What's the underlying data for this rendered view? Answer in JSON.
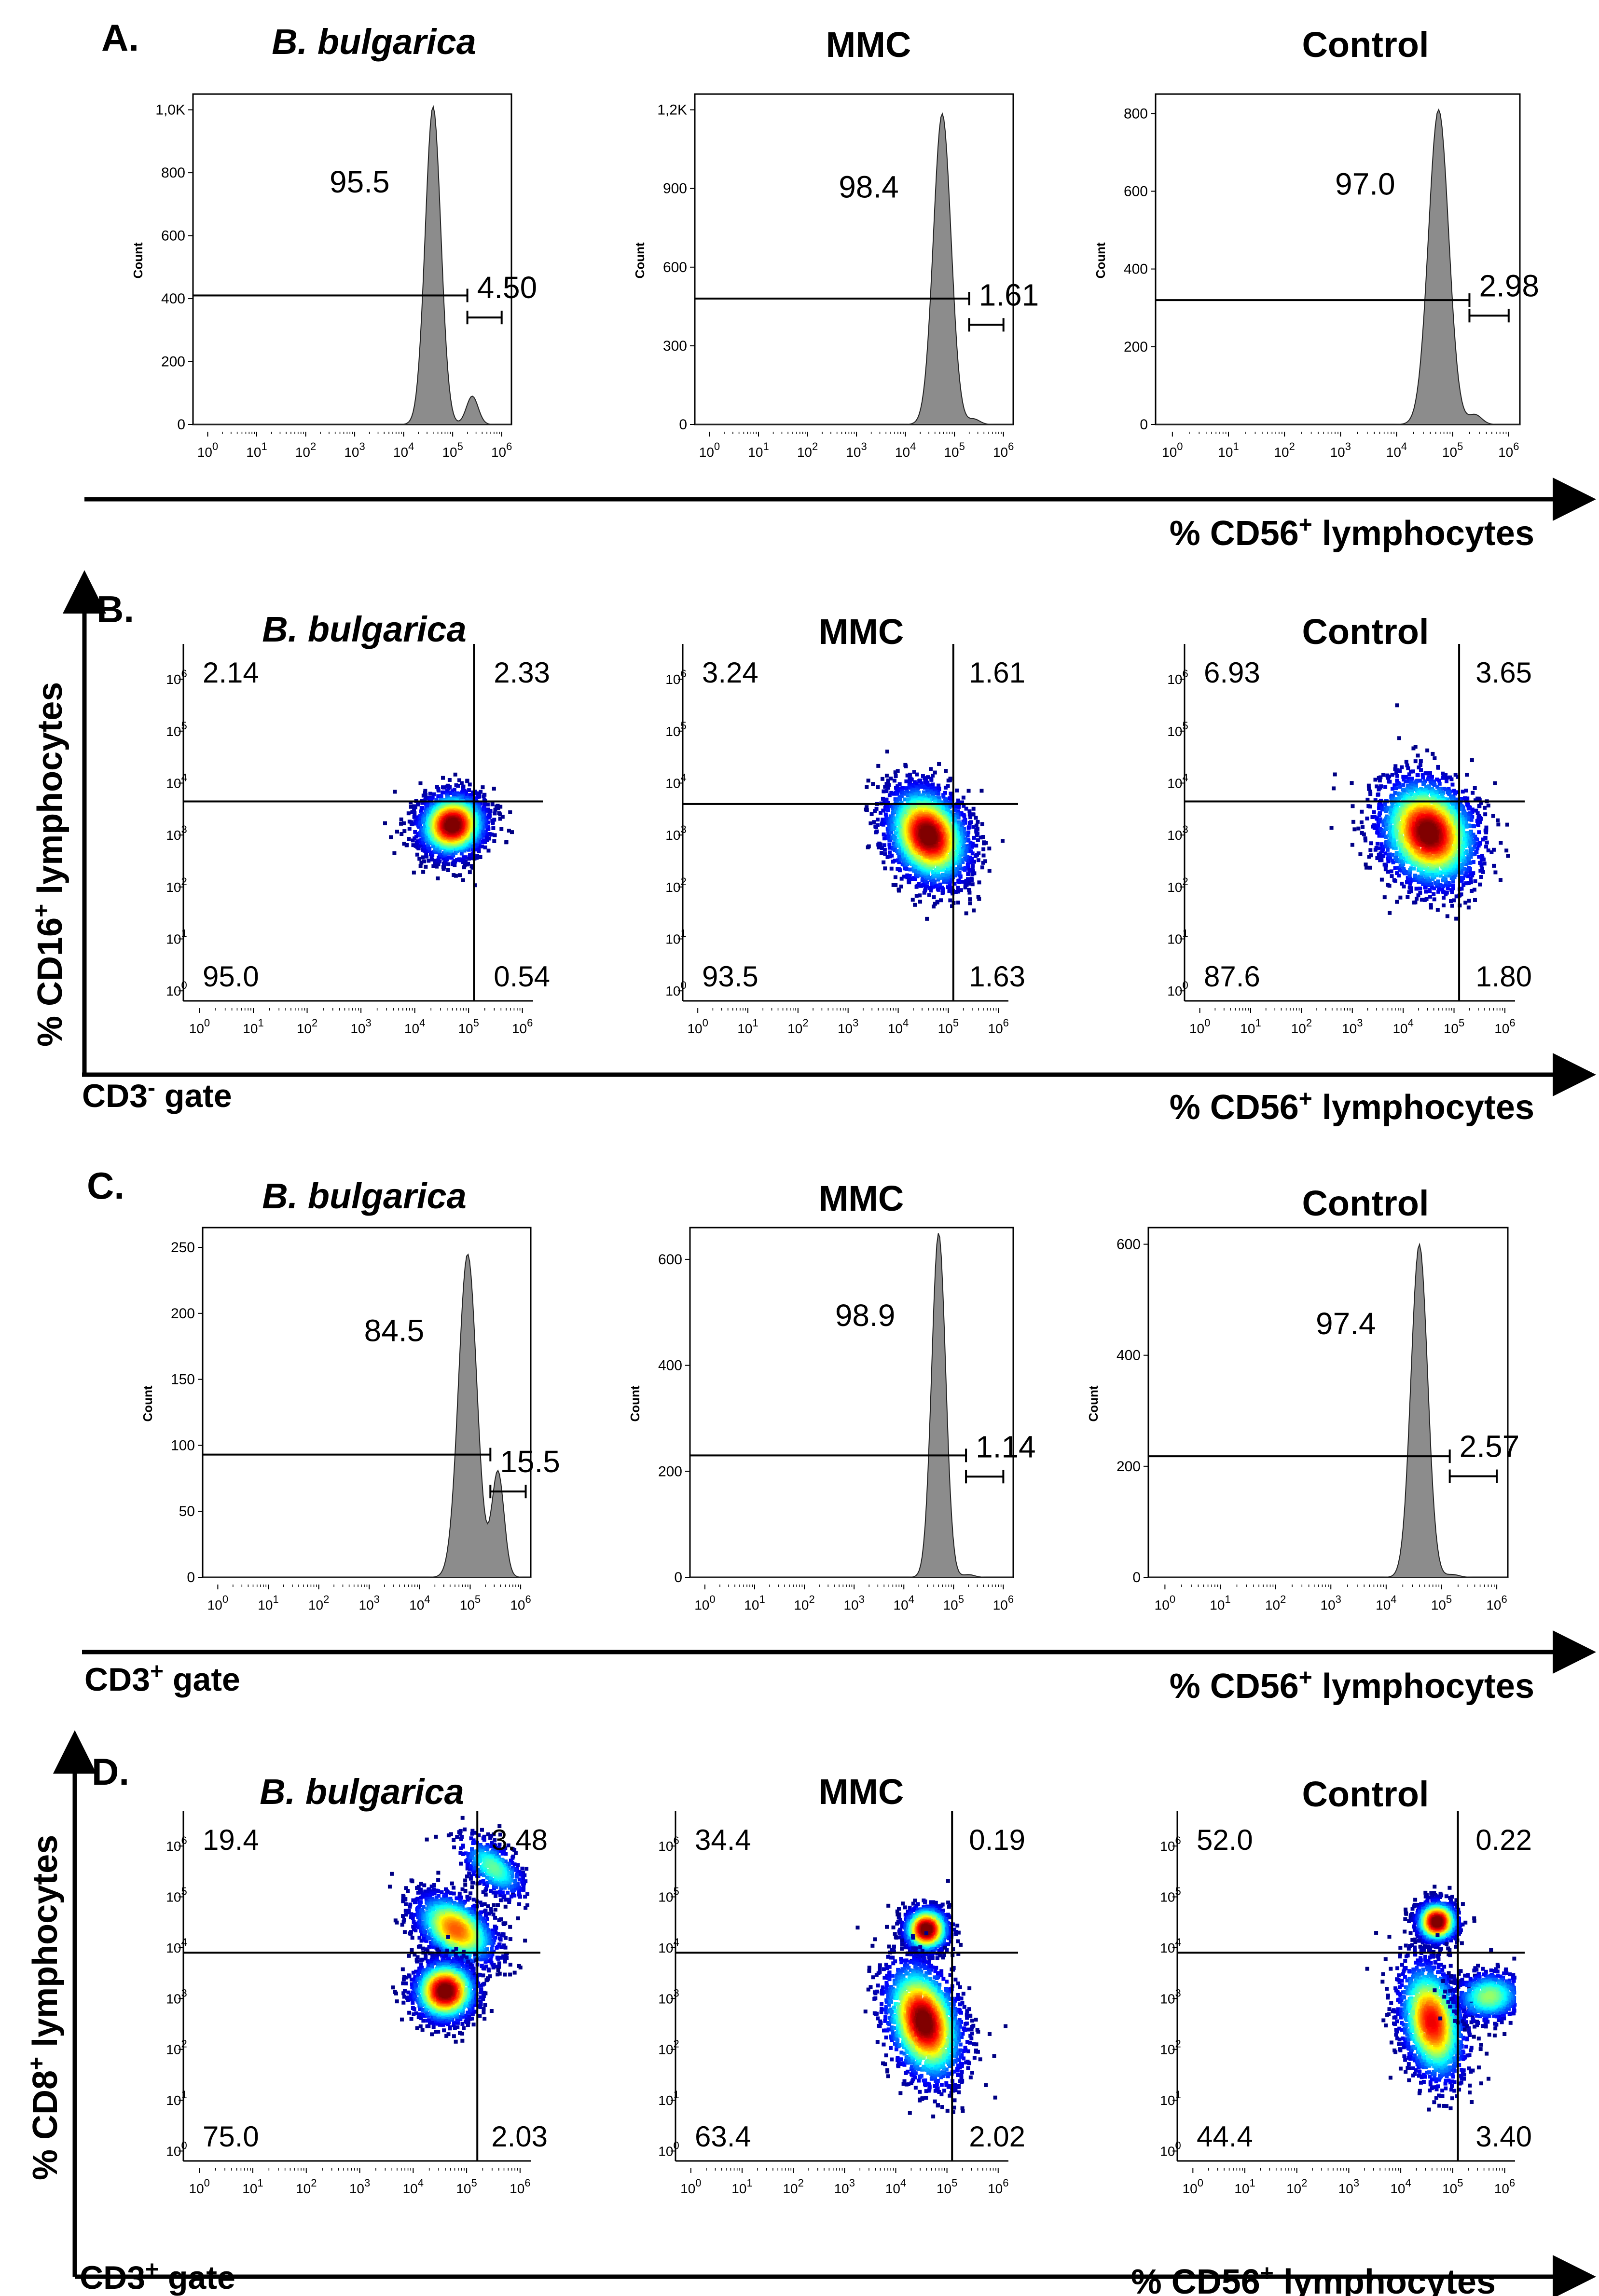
{
  "figure": {
    "panel_letters": [
      "A.",
      "B.",
      "C.",
      "D."
    ],
    "column_titles": [
      "B. bulgarica",
      "MMC",
      "Control"
    ],
    "x_axis_title": {
      "prefix": "% CD56",
      "sup": "+",
      "suffix": " lymphocytes"
    },
    "y_axis_titles": {
      "B": {
        "prefix": "% CD16",
        "sup": "+",
        "suffix": " lymphocytes"
      },
      "D": {
        "prefix": "% CD8",
        "sup": "+",
        "suffix": " lymphocytes"
      }
    },
    "gate_labels": {
      "B": {
        "base": "CD3",
        "sup": "-",
        "rest": " gate"
      },
      "C": {
        "base": "CD3",
        "sup": "+",
        "rest": " gate"
      },
      "D": {
        "base": "CD3",
        "sup": "+",
        "rest": " gate"
      }
    },
    "count_label": "Count"
  },
  "chart_data": [
    {
      "panel": "A",
      "type": "histogram",
      "title": "B. bulgarica",
      "xlabel": "% CD56+ lymphocytes",
      "ylabel": "Count",
      "xscale": "log",
      "xticks": [
        "10^0",
        "10^1",
        "10^2",
        "10^3",
        "10^4",
        "10^5",
        "10^6"
      ],
      "ylim": [
        0,
        1050
      ],
      "yticks": [
        "0",
        "200",
        "400",
        "600",
        "800",
        "1,0K"
      ],
      "ytick_values": [
        0,
        200,
        400,
        600,
        800,
        1000
      ],
      "peak_log": 4.6,
      "peak_count": 1010,
      "width": 0.16,
      "shoulder_log": 5.4,
      "shoulder_count": 90,
      "gates": [
        {
          "label": "95.5",
          "from_log": -0.3,
          "to_log": 5.3,
          "count": 410
        },
        {
          "label": "4.50",
          "from_log": 5.3,
          "to_log": 6.0,
          "count": 340
        }
      ]
    },
    {
      "panel": "A",
      "type": "histogram",
      "title": "MMC",
      "xlabel": "% CD56+ lymphocytes",
      "ylabel": "Count",
      "xscale": "log",
      "xticks": [
        "10^0",
        "10^1",
        "10^2",
        "10^3",
        "10^4",
        "10^5",
        "10^6"
      ],
      "ylim": [
        0,
        1260
      ],
      "yticks": [
        "0",
        "300",
        "600",
        "900",
        "1,2K"
      ],
      "ytick_values": [
        0,
        300,
        600,
        900,
        1200
      ],
      "peak_log": 4.75,
      "peak_count": 1185,
      "width": 0.18,
      "shoulder_log": 5.4,
      "shoulder_count": 20,
      "gates": [
        {
          "label": "98.4",
          "from_log": -0.3,
          "to_log": 5.3,
          "count": 480
        },
        {
          "label": "1.61",
          "from_log": 5.3,
          "to_log": 6.0,
          "count": 380
        }
      ]
    },
    {
      "panel": "A",
      "type": "histogram",
      "title": "Control",
      "xlabel": "% CD56+ lymphocytes",
      "ylabel": "Count",
      "xscale": "log",
      "xticks": [
        "10^0",
        "10^1",
        "10^2",
        "10^3",
        "10^4",
        "10^5",
        "10^6"
      ],
      "ylim": [
        0,
        850
      ],
      "yticks": [
        "0",
        "200",
        "400",
        "600",
        "800"
      ],
      "ytick_values": [
        0,
        200,
        400,
        600,
        800
      ],
      "peak_log": 4.75,
      "peak_count": 810,
      "width": 0.18,
      "shoulder_log": 5.4,
      "shoulder_count": 25,
      "gates": [
        {
          "label": "97.0",
          "from_log": -0.3,
          "to_log": 5.3,
          "count": 320
        },
        {
          "label": "2.98",
          "from_log": 5.3,
          "to_log": 6.0,
          "count": 280
        }
      ]
    },
    {
      "panel": "B",
      "type": "scatter_density",
      "title": "B. bulgarica",
      "xlabel": "% CD56+ lymphocytes",
      "ylabel": "% CD16+ lymphocytes",
      "xscale": "log",
      "yscale": "log",
      "xlim_log": [
        -0.3,
        6.2
      ],
      "ylim_log": [
        -0.3,
        6.5
      ],
      "quadrant_x_log": 5.1,
      "quadrant_y_log": 3.5,
      "quadrants": {
        "UL": "2.14",
        "UR": "2.33",
        "LL": "95.0",
        "LR": "0.54"
      },
      "clusters": [
        {
          "x_log": 4.7,
          "y_log": 3.05,
          "sx": 0.32,
          "sy": 0.3,
          "rot": 0.5,
          "n": 2200,
          "peak": 1
        }
      ]
    },
    {
      "panel": "B",
      "type": "scatter_density",
      "title": "MMC",
      "xlabel": "% CD56+ lymphocytes",
      "ylabel": "% CD16+ lymphocytes",
      "xscale": "log",
      "yscale": "log",
      "xlim_log": [
        -0.3,
        6.2
      ],
      "ylim_log": [
        -0.3,
        6.5
      ],
      "quadrant_x_log": 5.1,
      "quadrant_y_log": 3.45,
      "quadrants": {
        "UL": "3.24",
        "UR": "1.61",
        "LL": "93.5",
        "LR": "1.63"
      },
      "clusters": [
        {
          "x_log": 4.6,
          "y_log": 2.85,
          "sx": 0.38,
          "sy": 0.5,
          "rot": 0.55,
          "n": 2600,
          "peak": 1
        }
      ]
    },
    {
      "panel": "B",
      "type": "scatter_density",
      "title": "Control",
      "xlabel": "% CD56+ lymphocytes",
      "ylabel": "% CD16+ lymphocytes",
      "xscale": "log",
      "yscale": "log",
      "xlim_log": [
        -0.3,
        6.2
      ],
      "ylim_log": [
        -0.3,
        6.5
      ],
      "quadrant_x_log": 5.1,
      "quadrant_y_log": 3.5,
      "quadrants": {
        "UL": "6.93",
        "UR": "3.65",
        "LL": "87.6",
        "LR": "1.80"
      },
      "clusters": [
        {
          "x_log": 4.5,
          "y_log": 2.9,
          "sx": 0.45,
          "sy": 0.55,
          "rot": 0.6,
          "n": 2600,
          "peak": 1
        }
      ]
    },
    {
      "panel": "C",
      "type": "histogram",
      "title": "B. bulgarica",
      "xlabel": "% CD56+ lymphocytes",
      "ylabel": "Count",
      "xscale": "log",
      "xticks": [
        "10^0",
        "10^1",
        "10^2",
        "10^3",
        "10^4",
        "10^5",
        "10^6"
      ],
      "ylim": [
        0,
        265
      ],
      "yticks": [
        "0",
        "50",
        "100",
        "150",
        "200",
        "250"
      ],
      "ytick_values": [
        0,
        50,
        100,
        150,
        200,
        250
      ],
      "peak_log": 4.95,
      "peak_count": 245,
      "width": 0.18,
      "shoulder_log": 5.55,
      "shoulder_count": 80,
      "gates": [
        {
          "label": "84.5",
          "from_log": -0.3,
          "to_log": 5.4,
          "count": 93
        },
        {
          "label": "15.5",
          "from_log": 5.4,
          "to_log": 6.1,
          "count": 65
        }
      ]
    },
    {
      "panel": "C",
      "type": "histogram",
      "title": "MMC",
      "xlabel": "% CD56+ lymphocytes",
      "ylabel": "Count",
      "xscale": "log",
      "xticks": [
        "10^0",
        "10^1",
        "10^2",
        "10^3",
        "10^4",
        "10^5",
        "10^6"
      ],
      "ylim": [
        0,
        660
      ],
      "yticks": [
        "0",
        "200",
        "400",
        "600"
      ],
      "ytick_values": [
        0,
        200,
        400,
        600
      ],
      "peak_log": 4.7,
      "peak_count": 650,
      "width": 0.14,
      "shoulder_log": 5.3,
      "shoulder_count": 5,
      "gates": [
        {
          "label": "98.9",
          "from_log": -0.3,
          "to_log": 5.25,
          "count": 230
        },
        {
          "label": "1.14",
          "from_log": 5.25,
          "to_log": 6.0,
          "count": 190
        }
      ]
    },
    {
      "panel": "C",
      "type": "histogram",
      "title": "Control",
      "xlabel": "% CD56+ lymphocytes",
      "ylabel": "Count",
      "xscale": "log",
      "xticks": [
        "10^0",
        "10^1",
        "10^2",
        "10^3",
        "10^4",
        "10^5",
        "10^6"
      ],
      "ylim": [
        0,
        630
      ],
      "yticks": [
        "0",
        "200",
        "400",
        "600"
      ],
      "ytick_values": [
        0,
        200,
        400,
        600
      ],
      "peak_log": 4.6,
      "peak_count": 600,
      "width": 0.15,
      "shoulder_log": 5.2,
      "shoulder_count": 5,
      "gates": [
        {
          "label": "97.4",
          "from_log": -0.3,
          "to_log": 5.15,
          "count": 218
        },
        {
          "label": "2.57",
          "from_log": 5.15,
          "to_log": 6.0,
          "count": 182
        }
      ]
    },
    {
      "panel": "D",
      "type": "scatter_density",
      "title": "B. bulgarica",
      "xlabel": "% CD56+ lymphocytes",
      "ylabel": "% CD8+ lymphocytes",
      "xscale": "log",
      "yscale": "log",
      "xlim_log": [
        -0.3,
        6.2
      ],
      "ylim_log": [
        -0.3,
        6.5
      ],
      "quadrant_x_log": 5.2,
      "quadrant_y_log": 3.75,
      "quadrants": {
        "UL": "19.4",
        "UR": "3.48",
        "LL": "75.0",
        "LR": "2.03"
      },
      "clusters": [
        {
          "x_log": 4.8,
          "y_log": 4.2,
          "sx": 0.28,
          "sy": 0.45,
          "rot": 0.9,
          "n": 1500,
          "peak": 0.75
        },
        {
          "x_log": 4.6,
          "y_log": 3.0,
          "sx": 0.3,
          "sy": 0.3,
          "rot": 0.3,
          "n": 1700,
          "peak": 1
        },
        {
          "x_log": 5.5,
          "y_log": 5.4,
          "sx": 0.2,
          "sy": 0.4,
          "rot": 0.8,
          "n": 500,
          "peak": 0.45
        }
      ]
    },
    {
      "panel": "D",
      "type": "scatter_density",
      "title": "MMC",
      "xlabel": "% CD56+ lymphocytes",
      "ylabel": "% CD8+ lymphocytes",
      "xscale": "log",
      "yscale": "log",
      "xlim_log": [
        -0.3,
        6.2
      ],
      "ylim_log": [
        -0.3,
        6.5
      ],
      "quadrant_x_log": 5.1,
      "quadrant_y_log": 3.75,
      "quadrants": {
        "UL": "34.4",
        "UR": "0.19",
        "LL": "63.4",
        "LR": "2.02"
      },
      "clusters": [
        {
          "x_log": 4.6,
          "y_log": 4.2,
          "sx": 0.22,
          "sy": 0.22,
          "rot": 0,
          "n": 1200,
          "peak": 1
        },
        {
          "x_log": 4.55,
          "y_log": 2.4,
          "sx": 0.35,
          "sy": 0.6,
          "rot": 0.3,
          "n": 2300,
          "peak": 1
        }
      ]
    },
    {
      "panel": "D",
      "type": "scatter_density",
      "title": "Control",
      "xlabel": "% CD56+ lymphocytes",
      "ylabel": "% CD8+ lymphocytes",
      "xscale": "log",
      "yscale": "log",
      "xlim_log": [
        -0.3,
        6.2
      ],
      "ylim_log": [
        -0.3,
        6.5
      ],
      "quadrant_x_log": 5.1,
      "quadrant_y_log": 3.75,
      "quadrants": {
        "UL": "52.0",
        "UR": "0.22",
        "LL": "44.4",
        "LR": "3.40"
      },
      "clusters": [
        {
          "x_log": 4.7,
          "y_log": 4.35,
          "sx": 0.2,
          "sy": 0.2,
          "rot": 0,
          "n": 1200,
          "peak": 1
        },
        {
          "x_log": 4.6,
          "y_log": 2.4,
          "sx": 0.3,
          "sy": 0.6,
          "rot": 0.2,
          "n": 1800,
          "peak": 0.85
        },
        {
          "x_log": 5.7,
          "y_log": 2.9,
          "sx": 0.35,
          "sy": 0.25,
          "rot": 0.1,
          "n": 700,
          "peak": 0.5
        }
      ]
    }
  ]
}
